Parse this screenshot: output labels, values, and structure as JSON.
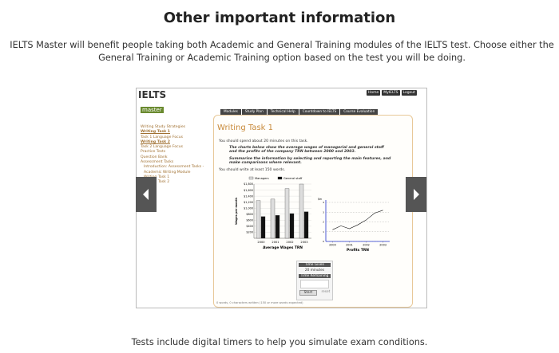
{
  "page": {
    "title": "Other important information",
    "intro": "IELTS Master will benefit people taking both Academic and General Training modules of the IELTS test. Choose either the General Training or Academic Training option based on the test you will be doing.",
    "caption": "Tests include digital timers to help you simulate exam conditions."
  },
  "screenshot": {
    "logo": [
      "IELTS",
      "master"
    ],
    "top_links": [
      "Home",
      "MyIELTS",
      "Logout"
    ],
    "tabs": [
      "Modules",
      "Study Plan",
      "Technical Help",
      "Countdown to IELTS",
      "Course Evaluation"
    ],
    "sidebar": [
      "Writing Study Strategies",
      "Writing Task 1",
      "Task 1 Language Focus",
      "Writing Task 2",
      "Task 2 Language Focus",
      "Practice Tests",
      "Question Bank",
      "Assessment Tasks",
      "Introduction: Assessment Tasks - Academic Writing Module",
      "Writing Task 1",
      "Writing Task 2"
    ],
    "heading": "Writing Task 1",
    "time_note": "You should spend about 20 minutes on this task.",
    "prompt": "The charts below show the average wages of managerial and general staff and the profits of the company TRN between 2000 and 2003.",
    "instruction": "Summarise the information by selecting and reporting the main features, and make comparisons where relevant.",
    "word_note": "You should write at least 150 words.",
    "bar_chart": {
      "type": "bar",
      "title": "Average Wages TRN",
      "ylabel": "Wages per month",
      "categories": [
        "2000",
        "2001",
        "2002",
        "2003"
      ],
      "series": [
        {
          "name": "Managers",
          "color": "#dddddd",
          "values": [
            1250,
            1300,
            1650,
            1800
          ]
        },
        {
          "name": "General staff",
          "color": "#111111",
          "values": [
            720,
            760,
            820,
            880
          ]
        }
      ],
      "ylim": [
        0,
        1800
      ],
      "yticks": [
        {
          "value": 200,
          "label": "$200"
        },
        {
          "value": 400,
          "label": "$400"
        },
        {
          "value": 600,
          "label": "$600"
        },
        {
          "value": 800,
          "label": "$800"
        },
        {
          "value": 1000,
          "label": "$1,000"
        },
        {
          "value": 1200,
          "label": "$1,200"
        },
        {
          "value": 1400,
          "label": "$1,400"
        },
        {
          "value": 1600,
          "label": "$1,600"
        },
        {
          "value": 1800,
          "label": "$1,800"
        }
      ]
    },
    "line_chart": {
      "type": "line",
      "title": "Profits TRN",
      "ylabel": "$m",
      "x": [
        2000,
        2000.5,
        2001,
        2001.5,
        2002,
        2002.5,
        2003
      ],
      "values": [
        1.2,
        1.6,
        1.3,
        1.7,
        2.2,
        2.9,
        3.2
      ],
      "color": "#111111",
      "xlim": [
        1999.6,
        2003.4
      ],
      "xticks": [
        2000,
        2001,
        2002,
        2003
      ],
      "ylim": [
        0,
        4
      ],
      "yticks": [
        0,
        1,
        2,
        3,
        4
      ],
      "grid": true
    },
    "timer": {
      "given_label": "Time Given",
      "given": "20 minutes",
      "remaining_label": "Time Remaining",
      "start": "Start",
      "reset": "reset"
    },
    "footer": "0 words, 0 characters written (150 or more words expected)"
  }
}
